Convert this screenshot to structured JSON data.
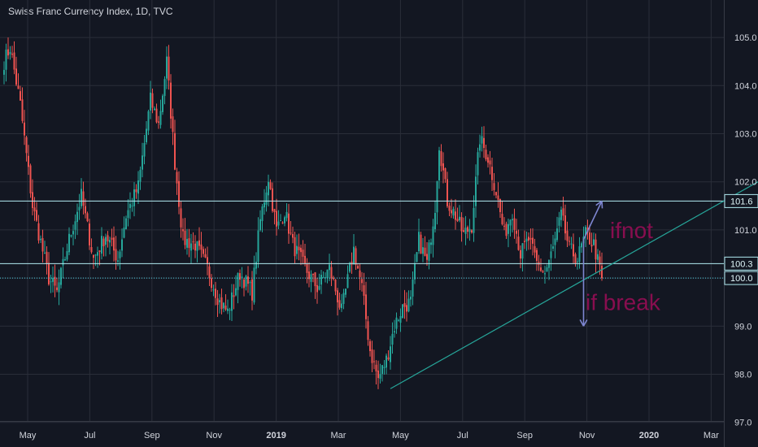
{
  "chart_data": {
    "type": "candlestick",
    "title": "Swiss Franc Currency Index, 1D, TVC",
    "ylim": [
      97.0,
      105.6
    ],
    "y_ticks": [
      97.0,
      98.0,
      99.0,
      100.0,
      101.0,
      102.0,
      103.0,
      104.0,
      105.0
    ],
    "y_tick_labels": [
      "97.0",
      "98.0",
      "99.0",
      "100.0",
      "101.0",
      "102.0",
      "103.0",
      "104.0",
      "105.0"
    ],
    "x_ticks": [
      {
        "label": "May",
        "month": 0,
        "bold": false
      },
      {
        "label": "Jul",
        "month": 2,
        "bold": false
      },
      {
        "label": "Sep",
        "month": 4,
        "bold": false
      },
      {
        "label": "Nov",
        "month": 6,
        "bold": false
      },
      {
        "label": "2019",
        "month": 8,
        "bold": true
      },
      {
        "label": "Mar",
        "month": 10,
        "bold": false
      },
      {
        "label": "May",
        "month": 12,
        "bold": false
      },
      {
        "label": "Jul",
        "month": 14,
        "bold": false
      },
      {
        "label": "Sep",
        "month": 16,
        "bold": false
      },
      {
        "label": "Nov",
        "month": 18,
        "bold": false
      },
      {
        "label": "2020",
        "month": 20,
        "bold": true
      },
      {
        "label": "Mar",
        "month": 22,
        "bold": false
      }
    ],
    "price_keypoints": [
      [
        0,
        104.5
      ],
      [
        3,
        104.8
      ],
      [
        8,
        103.6
      ],
      [
        14,
        101.5
      ],
      [
        22,
        100.0
      ],
      [
        26,
        99.7
      ],
      [
        32,
        100.8
      ],
      [
        38,
        101.7
      ],
      [
        44,
        100.4
      ],
      [
        50,
        100.9
      ],
      [
        56,
        100.4
      ],
      [
        60,
        101.3
      ],
      [
        66,
        101.9
      ],
      [
        72,
        103.7
      ],
      [
        76,
        103.2
      ],
      [
        80,
        104.5
      ],
      [
        84,
        102.4
      ],
      [
        88,
        100.8
      ],
      [
        94,
        100.7
      ],
      [
        100,
        100.2
      ],
      [
        106,
        99.5
      ],
      [
        110,
        99.3
      ],
      [
        116,
        100.1
      ],
      [
        122,
        99.7
      ],
      [
        126,
        101.2
      ],
      [
        130,
        102.1
      ],
      [
        134,
        101.0
      ],
      [
        138,
        101.4
      ],
      [
        142,
        100.7
      ],
      [
        148,
        100.2
      ],
      [
        154,
        99.8
      ],
      [
        160,
        100.2
      ],
      [
        166,
        99.3
      ],
      [
        172,
        100.6
      ],
      [
        176,
        99.8
      ],
      [
        180,
        98.5
      ],
      [
        184,
        97.9
      ],
      [
        188,
        98.3
      ],
      [
        192,
        99.0
      ],
      [
        196,
        99.4
      ],
      [
        200,
        99.5
      ],
      [
        204,
        100.8
      ],
      [
        208,
        100.3
      ],
      [
        212,
        101.5
      ],
      [
        214,
        102.8
      ],
      [
        218,
        101.6
      ],
      [
        222,
        101.3
      ],
      [
        226,
        100.9
      ],
      [
        230,
        101.1
      ],
      [
        234,
        102.9
      ],
      [
        238,
        102.5
      ],
      [
        242,
        101.8
      ],
      [
        246,
        100.9
      ],
      [
        250,
        101.4
      ],
      [
        254,
        100.5
      ],
      [
        258,
        100.8
      ],
      [
        262,
        100.3
      ],
      [
        266,
        100.1
      ],
      [
        270,
        100.6
      ],
      [
        274,
        101.3
      ],
      [
        278,
        100.6
      ],
      [
        282,
        100.4
      ],
      [
        286,
        100.9
      ],
      [
        290,
        100.7
      ],
      [
        294,
        100.0
      ]
    ],
    "horizontal_levels": [
      {
        "value": 101.6,
        "label": "101.6",
        "style": "solid"
      },
      {
        "value": 100.3,
        "label": "100.3",
        "style": "solid"
      },
      {
        "value": 100.0,
        "label": "100.0",
        "style": "dotted"
      }
    ],
    "trendline": {
      "from": {
        "bar": 190,
        "value": 97.7
      },
      "to": {
        "bar": 375,
        "value": 102.1
      }
    },
    "annotations": [
      {
        "text": "ifnot",
        "bar": 298,
        "value": 101.0
      },
      {
        "text": "if break",
        "bar": 286,
        "value": 99.5
      }
    ],
    "arrows": [
      {
        "from": {
          "bar": 285,
          "value": 100.8
        },
        "to": {
          "bar": 294,
          "value": 101.6
        }
      },
      {
        "from": {
          "bar": 285,
          "value": 100.8
        },
        "to": {
          "bar": 285,
          "value": 99.0
        }
      }
    ],
    "colors": {
      "background": "#131722",
      "grid": "#2a2e39",
      "up": "#26a69a",
      "down": "#ef5350",
      "level_line": "#b2ebf2",
      "trendline": "#26a69a",
      "annotation_text": "#880e4f",
      "arrow": "#7e86d1",
      "axis_text": "#d1d4dc"
    }
  }
}
